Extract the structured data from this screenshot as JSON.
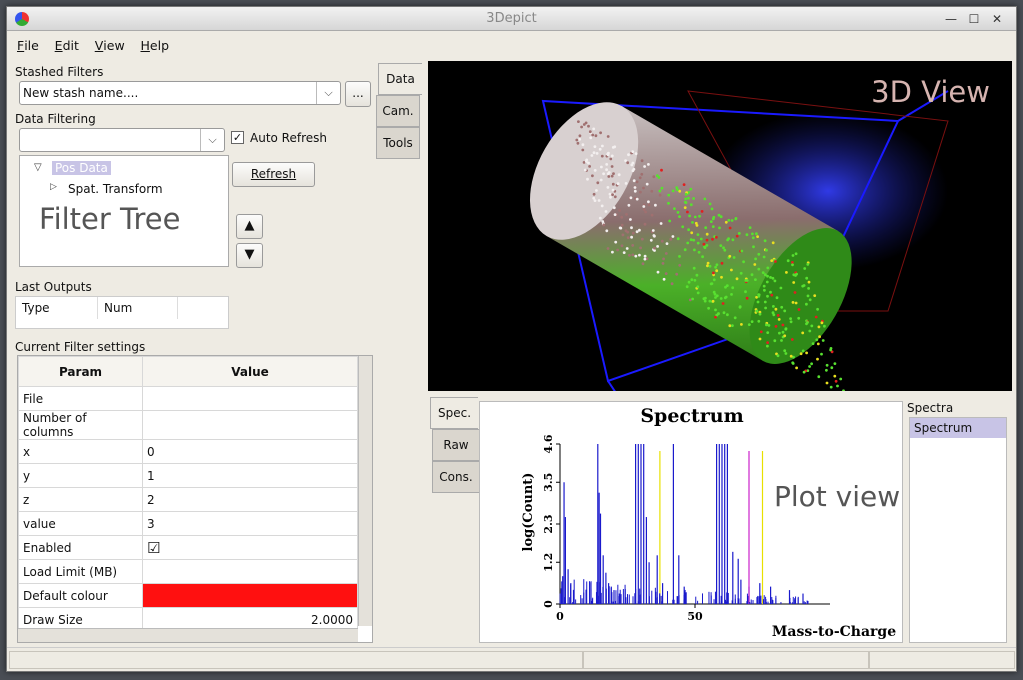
{
  "window": {
    "title": "3Depict"
  },
  "menu": [
    {
      "key": "F",
      "rest": "ile"
    },
    {
      "key": "E",
      "rest": "dit"
    },
    {
      "key": "V",
      "rest": "iew"
    },
    {
      "key": "H",
      "rest": "elp"
    }
  ],
  "stash": {
    "label": "Stashed Filters",
    "value": "New stash name....",
    "more_button": "..."
  },
  "filtering": {
    "label": "Data Filtering",
    "combo_value": "",
    "auto_refresh_label": "Auto Refresh",
    "auto_refresh_checked": true,
    "refresh_button": "Refresh",
    "tree_root": "Pos Data",
    "tree_child": "Spat. Transform",
    "overlay_caption": "Filter Tree",
    "move_up": "▲",
    "move_down": "▼"
  },
  "last_outputs": {
    "label": "Last Outputs",
    "columns": [
      "Type",
      "Num"
    ]
  },
  "settings": {
    "label": "Current Filter settings",
    "columns": [
      "Param",
      "Value"
    ],
    "rows": [
      {
        "param": "File",
        "value": ""
      },
      {
        "param": "Number of columns",
        "value": ""
      },
      {
        "param": "x",
        "value": "0"
      },
      {
        "param": "y",
        "value": "1"
      },
      {
        "param": "z",
        "value": "2"
      },
      {
        "param": "value",
        "value": "3"
      },
      {
        "param": "Enabled",
        "value": "☑"
      },
      {
        "param": "Load Limit (MB)",
        "value": ""
      },
      {
        "param": "Default colour",
        "value": "",
        "swatch": "#ff1010"
      },
      {
        "param": "Draw Size",
        "value": "2.0000"
      }
    ]
  },
  "right_tabs": [
    "Data",
    "Cam.",
    "Tools"
  ],
  "view3d": {
    "caption": "3D View"
  },
  "plot_tabs": [
    "Spec.",
    "Raw",
    "Cons."
  ],
  "plot": {
    "overlay_caption": "Plot view",
    "chart_data": {
      "type": "bar",
      "title": "Spectrum",
      "xlabel": "Mass-to-Charge",
      "ylabel": "log(Count)",
      "x_ticks": [
        "0",
        "50"
      ],
      "y_ticks": [
        "0",
        "1.2",
        "2.3",
        "3.5",
        "4.6"
      ],
      "xlim": [
        0,
        100
      ],
      "ylim": [
        0,
        4.6
      ],
      "series_color": "#1a1acc",
      "highlight_colors": [
        "#e8e000",
        "#cc22cc"
      ],
      "peaks": [
        [
          1,
          0.8
        ],
        [
          1.5,
          3.5
        ],
        [
          2,
          2.5
        ],
        [
          3,
          1.0
        ],
        [
          4,
          0.6
        ],
        [
          5,
          0.4
        ],
        [
          14,
          4.6
        ],
        [
          14.5,
          3.2
        ],
        [
          15,
          2.6
        ],
        [
          16,
          1.4
        ],
        [
          17,
          0.9
        ],
        [
          18,
          0.6
        ],
        [
          19,
          0.5
        ],
        [
          20,
          0.4
        ],
        [
          22,
          0.3
        ],
        [
          28,
          4.6
        ],
        [
          29,
          4.6
        ],
        [
          30,
          4.6
        ],
        [
          31,
          4.6
        ],
        [
          32,
          2.5
        ],
        [
          33,
          1.2
        ],
        [
          36,
          1.4
        ],
        [
          38,
          0.6
        ],
        [
          42,
          4.6
        ],
        [
          44,
          1.4
        ],
        [
          46,
          0.5
        ],
        [
          58,
          4.6
        ],
        [
          59,
          4.6
        ],
        [
          60,
          4.6
        ],
        [
          61,
          4.6
        ],
        [
          62,
          4.6
        ],
        [
          64,
          1.5
        ],
        [
          66,
          1.3
        ],
        [
          67,
          0.7
        ],
        [
          70,
          0.5
        ],
        [
          74,
          0.6
        ],
        [
          78,
          0.5
        ],
        [
          85,
          0.4
        ],
        [
          90,
          0.3
        ]
      ],
      "yellow_peaks": [
        [
          37,
          4.4
        ],
        [
          75,
          4.4
        ]
      ],
      "magenta_peaks": [
        [
          70,
          4.4
        ]
      ]
    }
  },
  "spectra_panel": {
    "label": "Spectra",
    "items": [
      "Spectrum"
    ]
  }
}
